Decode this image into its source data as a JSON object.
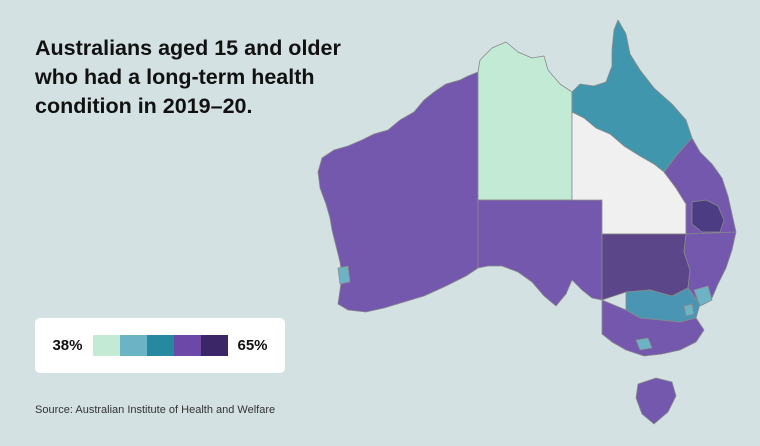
{
  "title": "Australians aged 15 and older who had a long-term health condition in 2019–20.",
  "legend": {
    "min_label": "38%",
    "max_label": "65%",
    "colors": [
      "#c2ead4",
      "#6db3c6",
      "#258aa0",
      "#6c48a8",
      "#3b2668"
    ]
  },
  "source": "Source: Australian Institute of Health and Welfare",
  "map_colors": {
    "wa": "#7458ad",
    "nt": "#c2ead4",
    "sa": "#7458ad",
    "qld_north": "#3f96ad",
    "qld_central": "#f0f0f0",
    "qld_southeast": "#7458ad",
    "brisbane": "#4c3c84",
    "nsw_west": "#5a4689",
    "nsw_east": "#7458ad",
    "nsw_south": "#4a95b4",
    "sydney": "#6db3c6",
    "perth": "#6db3c6",
    "act": "#6db3c6",
    "victoria": "#7458ad",
    "melbourne": "#6db3c6",
    "tasmania": "#7458ad"
  }
}
